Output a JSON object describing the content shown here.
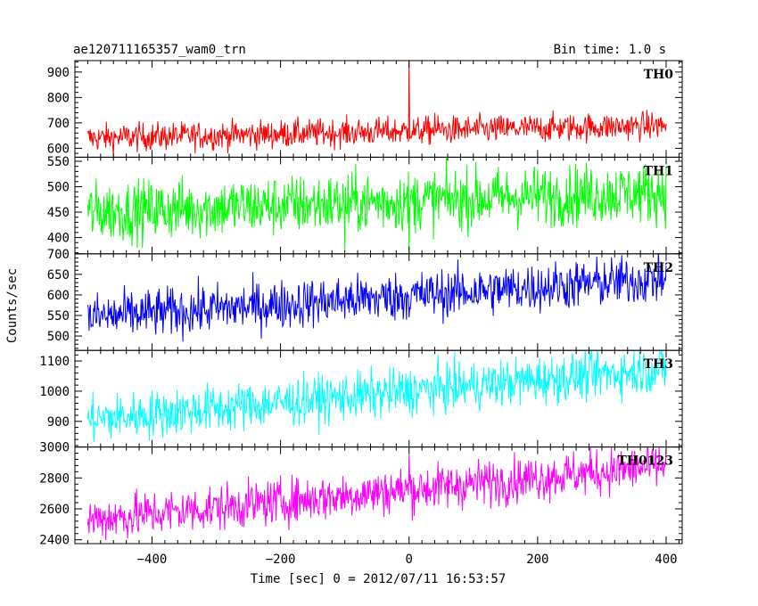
{
  "chart_data": {
    "type": "line",
    "title": "ae120711165357_wam0_trn",
    "subtitle": "Bin time: 1.0 s",
    "xlabel": "Time [sec] 0 = 2012/07/11 16:53:57",
    "ylabel": "Counts/sec",
    "xlim": [
      -520,
      425
    ],
    "x_ticks": [
      -400,
      -200,
      0,
      200,
      400
    ],
    "x_tick_labels": [
      "−400",
      "−200",
      "0",
      "200",
      "400"
    ],
    "x_data_range": [
      -500,
      400
    ],
    "bin_time": 1.0,
    "panels": [
      {
        "name": "TH0",
        "color": "#ff0000",
        "ylim": [
          565,
          945
        ],
        "yticks": [
          600,
          700,
          800,
          900
        ],
        "trend_start": 640,
        "trend_end": 690,
        "noise": 28,
        "spikes": [
          {
            "x": 0,
            "y": 945
          },
          {
            "x": 40,
            "y": 740
          }
        ]
      },
      {
        "name": "TH1",
        "color": "#00ff00",
        "ylim": [
          368,
          558
        ],
        "yticks": [
          400,
          450,
          500,
          550
        ],
        "trend_start": 450,
        "trend_end": 490,
        "noise": 30,
        "spikes": [
          {
            "x": 0,
            "y": 368
          },
          {
            "x": -100,
            "y": 375
          }
        ]
      },
      {
        "name": "TH2",
        "color": "#0000ff",
        "ylim": [
          465,
          700
        ],
        "yticks": [
          500,
          550,
          600,
          650,
          700
        ],
        "trend_start": 545,
        "trend_end": 640,
        "noise": 30,
        "spikes": []
      },
      {
        "name": "TH3",
        "color": "#00ffff",
        "ylim": [
          815,
          1135
        ],
        "yticks": [
          900,
          1000,
          1100
        ],
        "trend_start": 905,
        "trend_end": 1075,
        "noise": 40,
        "spikes": []
      },
      {
        "name": "TH0123",
        "color": "#ff00ff",
        "ylim": [
          2375,
          3000
        ],
        "yticks": [
          2400,
          2600,
          2800,
          3000
        ],
        "trend_start": 2530,
        "trend_end": 2880,
        "noise": 75,
        "spikes": [
          {
            "x": 0,
            "y": 2950
          }
        ]
      }
    ]
  }
}
